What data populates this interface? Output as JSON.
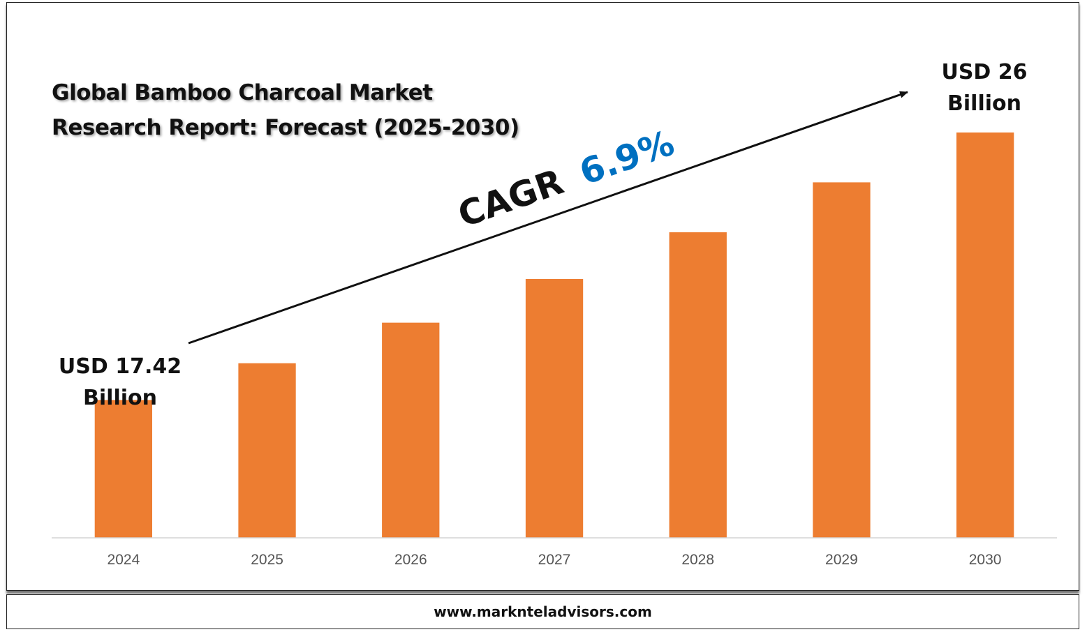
{
  "title_line1": "Global Bamboo Charcoal Market",
  "title_line2": "Research Report: Forecast (2025-2030)",
  "footer": "www.marknteladvisors.com",
  "chart_data": {
    "type": "bar",
    "categories": [
      "2024",
      "2025",
      "2026",
      "2027",
      "2028",
      "2029",
      "2030"
    ],
    "values": [
      17.42,
      18.6,
      19.9,
      21.3,
      22.8,
      24.4,
      26.0
    ],
    "ylim": [
      13.0,
      26.4
    ],
    "bar_color": "#ED7D31",
    "grid": false,
    "annotations": {
      "start_line1": "USD 17.42",
      "start_line2": "Billion",
      "end_line1": "USD 26",
      "end_line2": "Billion",
      "cagr_prefix": "CAGR",
      "cagr_value": "6.9%",
      "cagr_color": "#0070C0"
    }
  }
}
